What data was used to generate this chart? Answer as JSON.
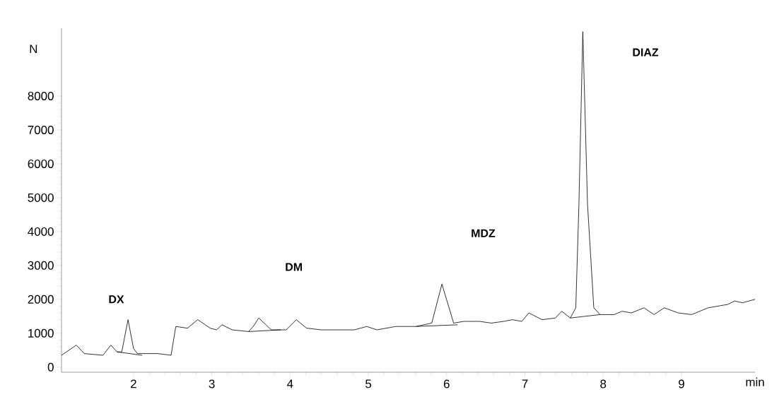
{
  "chart_data": {
    "type": "line",
    "xlabel": "min",
    "ylabel": "N",
    "xlim": [
      1.08,
      9.94
    ],
    "ylim": [
      -150,
      10000
    ],
    "xticks": [
      2,
      3,
      4,
      5,
      6,
      7,
      8,
      9
    ],
    "yticks": [
      0,
      1000,
      2000,
      3000,
      4000,
      5000,
      6000,
      7000,
      8000
    ],
    "grid": false,
    "legend": false,
    "marker": "none",
    "line_style": "solid",
    "series": [
      {
        "color": "#000000",
        "x": [
          1.08,
          1.27,
          1.37,
          1.61,
          1.71,
          1.79,
          1.85,
          1.93,
          2.0,
          2.05,
          2.31,
          2.48,
          2.54,
          2.69,
          2.82,
          2.98,
          3.06,
          3.13,
          3.26,
          3.47,
          3.53,
          3.6,
          3.76,
          3.95,
          4.08,
          4.21,
          4.4,
          4.82,
          4.98,
          5.11,
          5.35,
          5.61,
          5.81,
          5.94,
          6.09,
          6.22,
          6.42,
          6.57,
          6.73,
          6.84,
          6.96,
          7.05,
          7.22,
          7.39,
          7.47,
          7.58,
          7.65,
          7.69,
          7.74,
          7.8,
          7.88,
          7.96,
          8.14,
          8.24,
          8.36,
          8.52,
          8.65,
          8.78,
          8.96,
          9.13,
          9.34,
          9.59,
          9.68,
          9.78,
          9.94
        ],
        "values": [
          350,
          650,
          400,
          350,
          650,
          450,
          450,
          1400,
          550,
          400,
          400,
          350,
          1200,
          1150,
          1400,
          1150,
          1100,
          1250,
          1100,
          1050,
          1200,
          1450,
          1100,
          1100,
          1400,
          1150,
          1100,
          1100,
          1200,
          1100,
          1200,
          1200,
          1300,
          2450,
          1300,
          1350,
          1350,
          1300,
          1350,
          1400,
          1350,
          1600,
          1400,
          1450,
          1650,
          1450,
          1750,
          4800,
          9900,
          4800,
          1750,
          1550,
          1550,
          1650,
          1600,
          1750,
          1550,
          1750,
          1600,
          1550,
          1750,
          1850,
          1950,
          1900,
          2000
        ]
      },
      {
        "color": "#000000",
        "x": [
          1.79,
          2.11
        ],
        "values": [
          450,
          350
        ]
      },
      {
        "color": "#000000",
        "x": [
          3.47,
          3.88
        ],
        "values": [
          1050,
          1100
        ]
      },
      {
        "color": "#000000",
        "x": [
          5.61,
          6.14
        ],
        "values": [
          1200,
          1250
        ]
      },
      {
        "color": "#000000",
        "x": [
          7.58,
          7.96
        ],
        "values": [
          1450,
          1550
        ]
      }
    ],
    "annotations": [
      "DX",
      "DM",
      "MDZ",
      "DIAZ"
    ]
  }
}
